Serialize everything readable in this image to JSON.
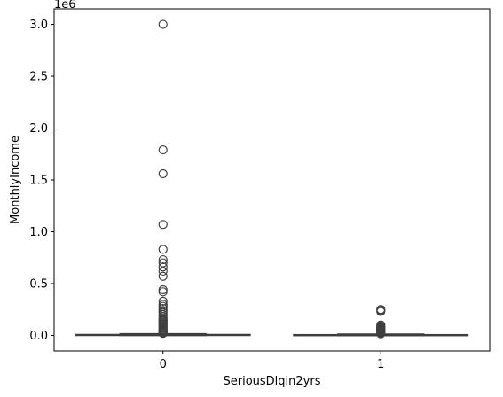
{
  "chart_data": {
    "type": "box",
    "xlabel": "SeriousDlqin2yrs",
    "ylabel": "MonthlyIncome",
    "y_offset_label": "1e6",
    "ylim": [
      -0.15,
      3.15
    ],
    "y_ticks": [
      0.0,
      0.5,
      1.0,
      1.5,
      2.0,
      2.5,
      3.0
    ],
    "y_tick_labels": [
      "0.0",
      "0.5",
      "1.0",
      "1.5",
      "2.0",
      "2.5",
      "3.0"
    ],
    "categories": [
      "0",
      "1"
    ],
    "groups": [
      {
        "category": "0",
        "q1": 0.0035,
        "median": 0.0054,
        "q3": 0.0083,
        "whisker_low": 0.0,
        "whisker_high": 0.0155,
        "outliers": [
          3.0,
          1.79,
          1.56,
          1.07,
          0.83,
          0.73,
          0.7,
          0.66,
          0.62,
          0.57,
          0.44,
          0.42,
          0.33,
          0.3,
          0.28,
          0.26,
          0.24,
          0.22,
          0.2,
          0.18,
          0.16,
          0.15,
          0.14,
          0.13,
          0.12,
          0.11,
          0.1,
          0.09,
          0.08,
          0.07,
          0.06,
          0.05,
          0.045,
          0.04,
          0.035,
          0.03,
          0.025,
          0.02
        ]
      },
      {
        "category": "1",
        "q1": 0.0022,
        "median": 0.004,
        "q3": 0.0065,
        "whisker_low": 0.0,
        "whisker_high": 0.0125,
        "outliers": [
          0.25,
          0.24,
          0.23,
          0.1,
          0.09,
          0.08,
          0.075,
          0.07,
          0.065,
          0.06,
          0.055,
          0.05,
          0.045,
          0.04,
          0.035,
          0.03,
          0.025,
          0.02,
          0.015
        ]
      }
    ],
    "colors": {
      "box_fill": "#3a75b0",
      "line": "#3f3f3f",
      "axis": "#000000"
    }
  }
}
